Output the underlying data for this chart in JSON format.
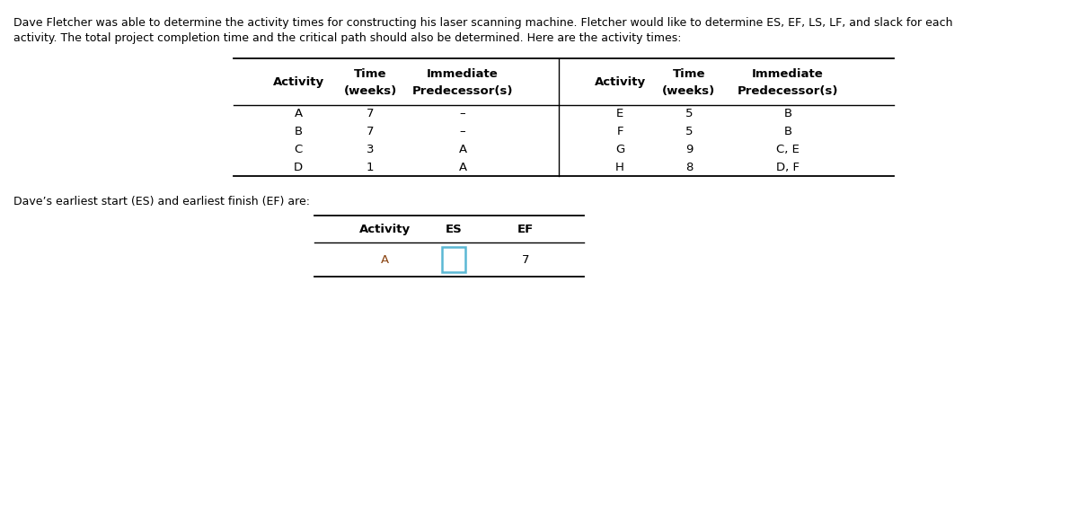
{
  "intro_text_line1": "Dave Fletcher was able to determine the activity times for constructing his laser scanning machine. Fletcher would like to determine ES, EF, LS, LF, and slack for each",
  "intro_text_line2": "activity. The total project completion time and the critical path should also be determined. Here are the activity times:",
  "table1_data": [
    [
      "A",
      "7",
      "–"
    ],
    [
      "B",
      "7",
      "–"
    ],
    [
      "C",
      "3",
      "A"
    ],
    [
      "D",
      "1",
      "A"
    ]
  ],
  "table2_data": [
    [
      "E",
      "5",
      "B"
    ],
    [
      "F",
      "5",
      "B"
    ],
    [
      "G",
      "9",
      "C, E"
    ],
    [
      "H",
      "8",
      "D, F"
    ]
  ],
  "second_text": "Dave’s earliest start (ES) and earliest finish (EF) are:",
  "background_color": "#ffffff",
  "text_color": "#000000",
  "activity_color": "#8B4513",
  "box_color": "#5BB8D4",
  "font_size": 9.5,
  "intro_font_size": 9.0,
  "fig_width": 12.0,
  "fig_height": 5.69
}
